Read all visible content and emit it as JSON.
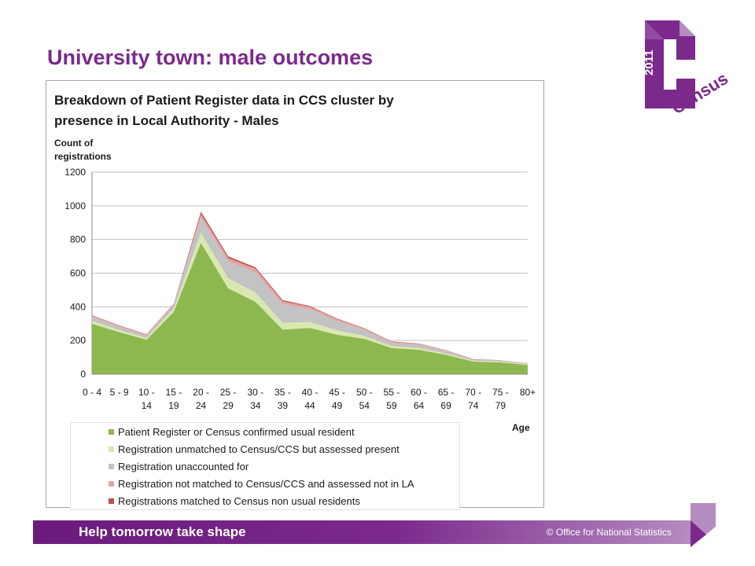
{
  "slide": {
    "title": "University town: male outcomes"
  },
  "logo": {
    "year": "2011",
    "word": "Census"
  },
  "footer": {
    "tagline": "Help tomorrow take shape",
    "copyright": "© Office for National Statistics"
  },
  "colors": {
    "brand_purple": "#7b2a8c",
    "series": [
      "#8db84f",
      "#d9e8b0",
      "#c3c3c3",
      "#e0a5a8",
      "#c0504d"
    ],
    "grid": "#bfbfbf"
  },
  "chart_data": {
    "type": "area",
    "stacked": true,
    "title": "Breakdown of Patient Register data in CCS cluster by presence in Local Authority - Males",
    "title_lines": [
      "Breakdown of Patient Register data in CCS cluster by",
      "presence in Local Authority - Males"
    ],
    "ylabel": "Count of registrations",
    "ylabel_lines": [
      "Count of",
      "registrations"
    ],
    "xlabel": "Age",
    "ylim": [
      0,
      1200
    ],
    "yticks": [
      0,
      200,
      400,
      600,
      800,
      1000,
      1200
    ],
    "grid": true,
    "legend_position": "bottom",
    "categories": [
      "0 - 4",
      "5 - 9",
      "10 - 14",
      "15 - 19",
      "20 - 24",
      "25 - 29",
      "30 - 34",
      "35 - 39",
      "40 - 44",
      "45 - 49",
      "50 - 54",
      "55 - 59",
      "60 - 64",
      "65 - 69",
      "70 - 74",
      "75 - 79",
      "80+"
    ],
    "category_lines": [
      [
        "0 - 4"
      ],
      [
        "5 - 9"
      ],
      [
        "10 -",
        "14"
      ],
      [
        "15 -",
        "19"
      ],
      [
        "20 -",
        "24"
      ],
      [
        "25 -",
        "29"
      ],
      [
        "30 -",
        "34"
      ],
      [
        "35 -",
        "39"
      ],
      [
        "40 -",
        "44"
      ],
      [
        "45 -",
        "49"
      ],
      [
        "50 -",
        "54"
      ],
      [
        "55 -",
        "59"
      ],
      [
        "60 -",
        "64"
      ],
      [
        "65 -",
        "69"
      ],
      [
        "70 -",
        "74"
      ],
      [
        "75 -",
        "79"
      ],
      [
        "80+"
      ]
    ],
    "series": [
      {
        "name": "Patient Register or Census confirmed usual resident",
        "values": [
          300,
          250,
          205,
          370,
          780,
          510,
          430,
          265,
          275,
          235,
          210,
          155,
          145,
          115,
          75,
          70,
          55
        ]
      },
      {
        "name": "Registration unmatched to Census/CCS but assessed present",
        "values": [
          15,
          12,
          10,
          20,
          60,
          60,
          55,
          40,
          35,
          25,
          18,
          12,
          10,
          8,
          6,
          5,
          4
        ]
      },
      {
        "name": "Registration unaccounted for",
        "values": [
          25,
          20,
          15,
          20,
          90,
          100,
          120,
          110,
          75,
          55,
          35,
          20,
          20,
          15,
          5,
          5,
          3
        ]
      },
      {
        "name": "Registration not matched to Census/CCS and assessed not in LA",
        "values": [
          8,
          6,
          5,
          5,
          20,
          20,
          22,
          18,
          15,
          12,
          8,
          6,
          5,
          4,
          2,
          2,
          2
        ]
      },
      {
        "name": "Registrations matched to Census non usual residents",
        "values": [
          2,
          2,
          2,
          3,
          15,
          10,
          8,
          7,
          5,
          3,
          2,
          2,
          2,
          1,
          1,
          1,
          1
        ]
      }
    ]
  }
}
